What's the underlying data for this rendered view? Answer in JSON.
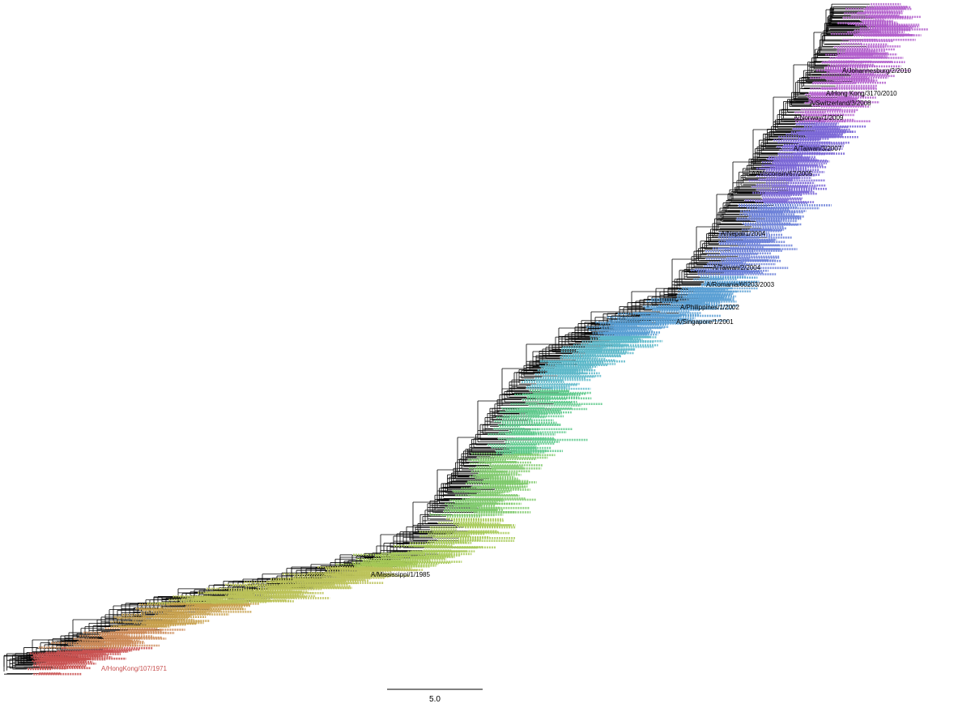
{
  "tree": {
    "colors": {
      "c1970s": "#c8504f",
      "c1975": "#cc8a57",
      "c1977": "#c7a04c",
      "c1980s": "#bcc35a",
      "c1988": "#a6c957",
      "c1992": "#7ec96b",
      "c1996": "#5cc88a",
      "c1998": "#5cb8c9",
      "c2002": "#5a9fd4",
      "c2004": "#6a7fd8",
      "c2006": "#7a66d6",
      "c2010": "#b25fcc",
      "black": "#000000",
      "branch": "#000000"
    },
    "labeled_leaves": [
      {
        "text": "A/HongKong/107/1971",
        "color": "c1970s"
      },
      {
        "text": "A/Mississippi/1/1985",
        "color": "black"
      },
      {
        "text": "A/Singapore/1/2001",
        "color": "black"
      },
      {
        "text": "A/Philippines/1/2002",
        "color": "black"
      },
      {
        "text": "A/Romania/60203/2003",
        "color": "black"
      },
      {
        "text": "A/Taiwan/2/2004",
        "color": "black"
      },
      {
        "text": "A/Wisconsin/67/2005",
        "color": "black"
      },
      {
        "text": "A/Nepal/1/2004",
        "color": "black"
      },
      {
        "text": "A/Taiwan/3/2007",
        "color": "black"
      },
      {
        "text": "A/Norway/1/2009",
        "color": "black"
      },
      {
        "text": "A/Switzerland/3/2008",
        "color": "black"
      },
      {
        "text": "A/Hong Kong/3170/2010",
        "color": "black"
      },
      {
        "text": "A/Johannesburg/2/2010",
        "color": "black"
      }
    ]
  },
  "scale_bar": {
    "label": "5.0"
  }
}
